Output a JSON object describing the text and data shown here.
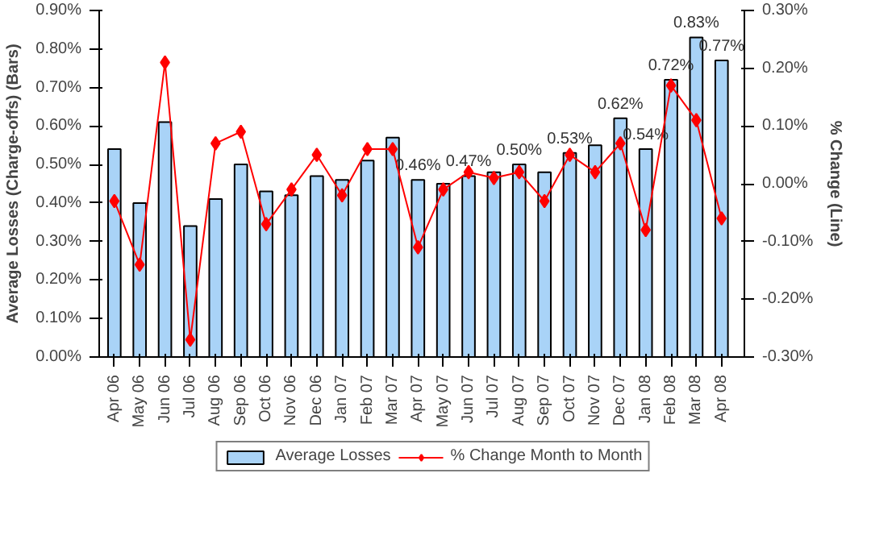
{
  "chart_data": {
    "type": "bar",
    "xlabel": null,
    "ylabel": "Average Losses (Charge-offs) (Bars)",
    "y2label": "% Change (Line)",
    "categories": [
      "Apr 06",
      "May 06",
      "Jun 06",
      "Jul 06",
      "Aug 06",
      "Sep 06",
      "Oct 06",
      "Nov 06",
      "Dec 06",
      "Jan 07",
      "Feb 07",
      "Mar 07",
      "Apr 07",
      "May 07",
      "Jun 07",
      "Jul 07",
      "Aug 07",
      "Sep 07",
      "Oct 07",
      "Nov 07",
      "Dec 07",
      "Jan 08",
      "Feb 08",
      "Mar 08",
      "Apr 08"
    ],
    "series": [
      {
        "name": "Average Losses",
        "color": "#a9d3f7",
        "values": [
          0.54,
          0.4,
          0.61,
          0.34,
          0.41,
          0.5,
          0.43,
          0.42,
          0.47,
          0.46,
          0.51,
          0.57,
          0.46,
          0.45,
          0.47,
          0.48,
          0.5,
          0.48,
          0.53,
          0.55,
          0.62,
          0.54,
          0.72,
          0.83,
          0.77
        ],
        "value_labels": [
          null,
          null,
          null,
          null,
          null,
          null,
          null,
          null,
          null,
          null,
          null,
          null,
          "0.46%",
          null,
          "0.47%",
          null,
          "0.50%",
          null,
          "0.53%",
          null,
          "0.62%",
          "0.54%",
          "0.72%",
          "0.83%",
          "0.77%"
        ]
      },
      {
        "name": "% Change Month to Month",
        "type": "line",
        "axis": "y2",
        "color": "#ff0000",
        "marker": "diamond",
        "values": [
          -0.03,
          -0.14,
          0.21,
          -0.27,
          0.07,
          0.09,
          -0.07,
          -0.01,
          0.05,
          -0.02,
          0.06,
          0.06,
          -0.11,
          -0.01,
          0.02,
          0.01,
          0.02,
          -0.03,
          0.05,
          0.02,
          0.07,
          -0.08,
          0.17,
          0.11,
          -0.06
        ]
      }
    ],
    "ylim": [
      0,
      0.9
    ],
    "yticks": [
      {
        "value": 0,
        "label": "0.00%"
      },
      {
        "value": 0.1,
        "label": "0.10%"
      },
      {
        "value": 0.2,
        "label": "0.20%"
      },
      {
        "value": 0.3,
        "label": "0.30%"
      },
      {
        "value": 0.4,
        "label": "0.40%"
      },
      {
        "value": 0.5,
        "label": "0.50%"
      },
      {
        "value": 0.6,
        "label": "0.60%"
      },
      {
        "value": 0.7,
        "label": "0.70%"
      },
      {
        "value": 0.8,
        "label": "0.80%"
      },
      {
        "value": 0.9,
        "label": "0.90%"
      }
    ],
    "y2lim": [
      -0.3,
      0.3
    ],
    "y2ticks": [
      {
        "value": -0.3,
        "label": "-0.30%"
      },
      {
        "value": -0.2,
        "label": "-0.20%"
      },
      {
        "value": -0.1,
        "label": "-0.10%"
      },
      {
        "value": 0,
        "label": "0.00%"
      },
      {
        "value": 0.1,
        "label": "0.10%"
      },
      {
        "value": 0.2,
        "label": "0.20%"
      },
      {
        "value": 0.3,
        "label": "0.30%"
      }
    ],
    "grid": false,
    "legend": "bottom"
  }
}
